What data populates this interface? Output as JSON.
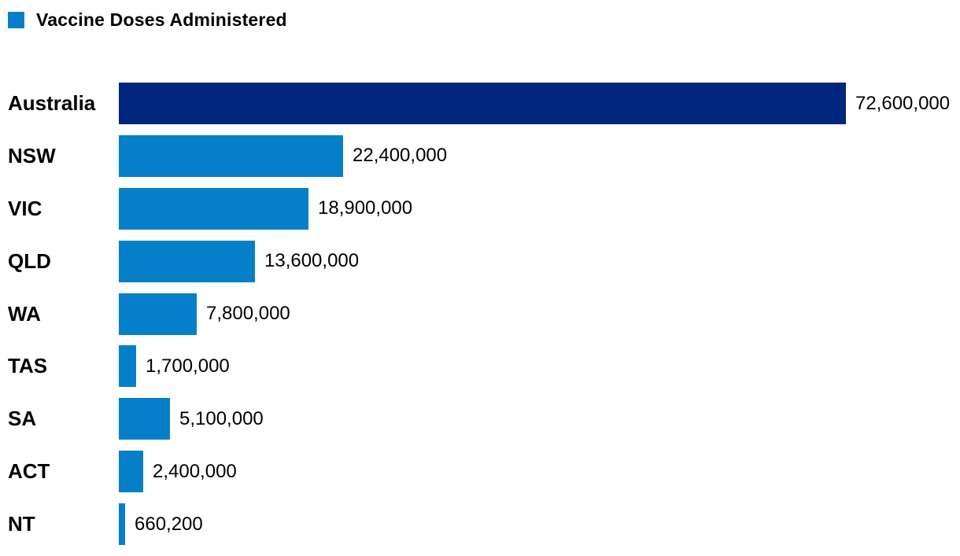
{
  "colors": {
    "background": "#ffffff",
    "text": "#000000",
    "highlight_bar": "#00267d",
    "default_bar": "#0580c8",
    "legend_swatch": "#0580c8"
  },
  "chart_data": {
    "type": "bar",
    "orientation": "horizontal",
    "title": "",
    "legend": {
      "label": "Vaccine Doses Administered",
      "position": "top-left",
      "swatch_color": "#0580c8"
    },
    "categories": [
      "Australia",
      "NSW",
      "VIC",
      "QLD",
      "WA",
      "TAS",
      "SA",
      "ACT",
      "NT"
    ],
    "values": [
      72600000,
      22400000,
      18900000,
      13600000,
      7800000,
      1700000,
      5100000,
      2400000,
      660200
    ],
    "value_labels": [
      "72,600,000",
      "22,400,000",
      "18,900,000",
      "13,600,000",
      "7,800,000",
      "1,700,000",
      "5,100,000",
      "2,400,000",
      "660,200"
    ],
    "bar_colors": [
      "#00267d",
      "#0580c8",
      "#0580c8",
      "#0580c8",
      "#0580c8",
      "#0580c8",
      "#0580c8",
      "#0580c8",
      "#0580c8"
    ],
    "xlim": [
      0,
      72600000
    ],
    "grid": false,
    "axis_ticks": "none",
    "data_labels": "end-of-bar"
  }
}
